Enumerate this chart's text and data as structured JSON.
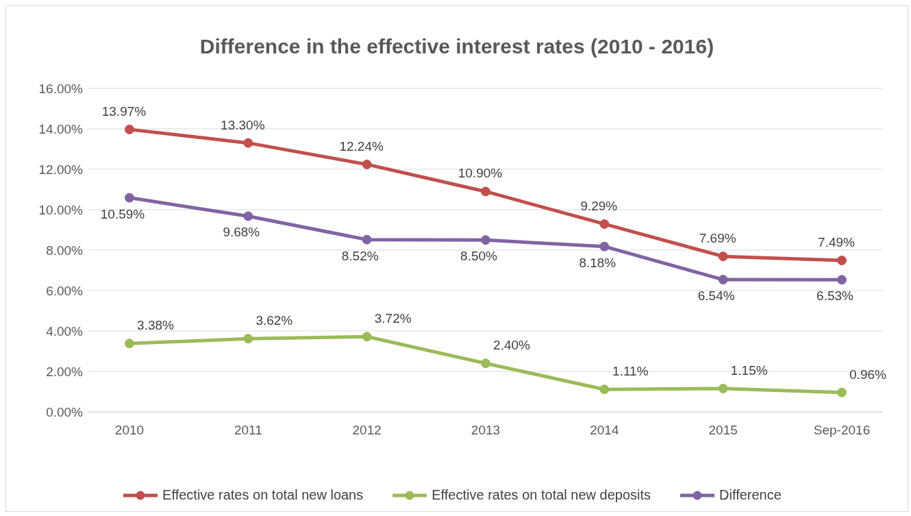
{
  "chart_data": {
    "type": "line",
    "title": "Difference in the effective interest rates (2010 - 2016)",
    "categories": [
      "2010",
      "2011",
      "2012",
      "2013",
      "2014",
      "2015",
      "Sep-2016"
    ],
    "series": [
      {
        "name": "Effective rates on total new loans",
        "color": "#c0504d",
        "values": [
          13.97,
          13.3,
          12.24,
          10.9,
          9.29,
          7.69,
          7.49
        ],
        "value_labels": [
          "13.97%",
          "13.30%",
          "12.24%",
          "10.90%",
          "9.29%",
          "7.69%",
          "7.49%"
        ]
      },
      {
        "name": "Effective rates on total new deposits",
        "color": "#9bbb59",
        "values": [
          3.38,
          3.62,
          3.72,
          2.4,
          1.11,
          1.15,
          0.96
        ],
        "value_labels": [
          "3.38%",
          "3.62%",
          "3.72%",
          "2.40%",
          "1.11%",
          "1.15%",
          "0.96%"
        ]
      },
      {
        "name": "Difference",
        "color": "#8064a2",
        "values": [
          10.59,
          9.68,
          8.52,
          8.5,
          8.18,
          6.54,
          6.53
        ],
        "value_labels": [
          "10.59%",
          "9.68%",
          "8.52%",
          "8.50%",
          "8.18%",
          "6.54%",
          "6.53%"
        ]
      }
    ],
    "ylim": [
      0,
      16
    ],
    "yticks": [
      {
        "value": 0,
        "label": "0.00%"
      },
      {
        "value": 2,
        "label": "2.00%"
      },
      {
        "value": 4,
        "label": "4.00%"
      },
      {
        "value": 6,
        "label": "6.00%"
      },
      {
        "value": 8,
        "label": "8.00%"
      },
      {
        "value": 10,
        "label": "10.00%"
      },
      {
        "value": 12,
        "label": "12.00%"
      },
      {
        "value": 14,
        "label": "14.00%"
      },
      {
        "value": 16,
        "label": "16.00%"
      }
    ],
    "grid": "y",
    "legend": "bottom",
    "marker": "circle",
    "line_style": "solid"
  }
}
